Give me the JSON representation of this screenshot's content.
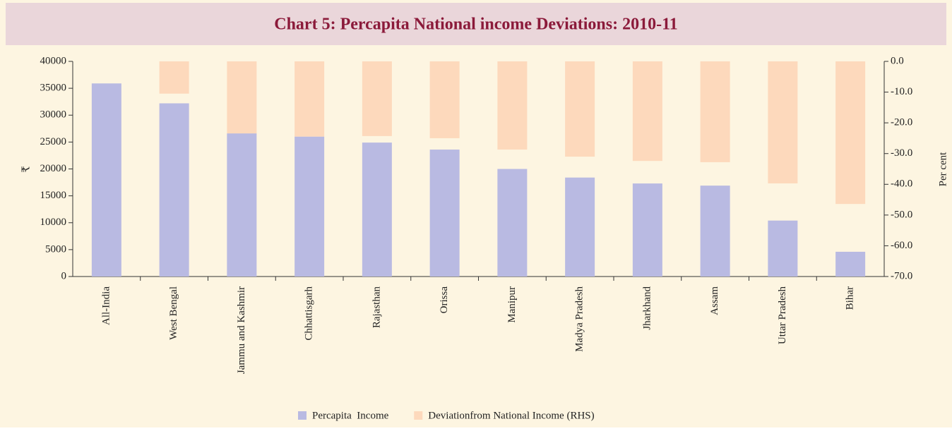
{
  "chart_data": {
    "type": "bar",
    "title": "Chart 5: Percapita National income Deviations: 2010-11",
    "y_label": "₹",
    "y2_label": "Per cent",
    "categories": [
      "All-India",
      "West Bengal",
      "Jammu and Kashmir",
      "Chhattisgarh",
      "Rajasthan",
      "Orissa",
      "Manipur",
      "Madya Pradesh",
      "Jharkhand",
      "Assam",
      "Uttar Pradesh",
      "Bihar"
    ],
    "series": [
      {
        "name": "Percapita  Income",
        "color": "#b9bae2",
        "values": [
          35900,
          32200,
          26600,
          26000,
          24900,
          23600,
          20000,
          18400,
          17300,
          16900,
          10400,
          4600
        ]
      },
      {
        "name": "Deviationfrom National Income (RHS)",
        "color": "#fdd9bc",
        "axis": "y2",
        "values": [
          0,
          -10.5,
          -23.5,
          -24.5,
          -24.3,
          -25,
          -28.7,
          -31,
          -32.4,
          -32.8,
          -39.7,
          -46.4
        ]
      }
    ],
    "ylim": [
      0,
      40000
    ],
    "yticks": [
      0,
      5000,
      10000,
      15000,
      20000,
      25000,
      30000,
      35000,
      40000
    ],
    "y2lim": [
      -70,
      0
    ],
    "y2ticks": [
      {
        "value": 0,
        "label": "0.0"
      },
      {
        "value": -10,
        "label": "-10.0"
      },
      {
        "value": -20,
        "label": "-20.0"
      },
      {
        "value": -30,
        "label": "-30.0"
      },
      {
        "value": -40,
        "label": "-40.0"
      },
      {
        "value": -50,
        "label": "-50.0"
      },
      {
        "value": -60,
        "label": "-60.0"
      },
      {
        "value": -70,
        "label": "-70.0"
      }
    ]
  }
}
